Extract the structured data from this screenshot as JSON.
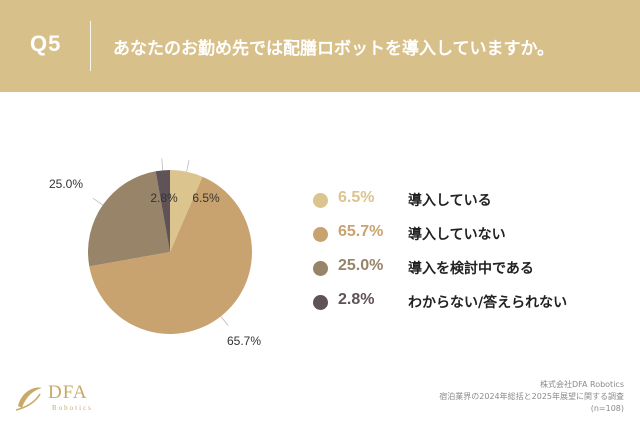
{
  "header": {
    "qnum": "Q5",
    "question": "あなたのお勤め先では配膳ロボットを導入していますか。"
  },
  "colors": {
    "header_bg": "#d8c08a",
    "panel_bg": "#ffffff"
  },
  "chart_data": {
    "type": "pie",
    "title": "",
    "slices": [
      {
        "label": "導入している",
        "value": 6.5,
        "display": "6.5%",
        "color": "#dcc48f"
      },
      {
        "label": "導入していない",
        "value": 65.7,
        "display": "65.7%",
        "color": "#c9a36f"
      },
      {
        "label": "導入を検討中である",
        "value": 25.0,
        "display": "25.0%",
        "color": "#978469"
      },
      {
        "label": "わからない/答えられない",
        "value": 2.8,
        "display": "2.8%",
        "color": "#5f5357"
      }
    ],
    "start": "12 o'clock, clockwise",
    "legend_position": "right"
  },
  "logo": {
    "name": "DFA",
    "sub": "Robotics"
  },
  "source": {
    "line1": "株式会社DFA Robotics",
    "line2": "宿泊業界の2024年総括と2025年展望に関する調査",
    "line3": "(n=108)"
  }
}
